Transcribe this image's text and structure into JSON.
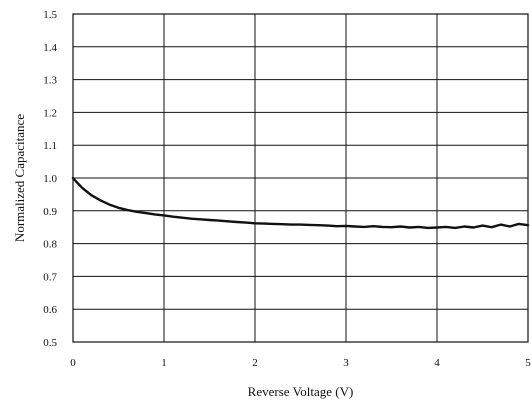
{
  "chart_data": {
    "type": "line",
    "title": "",
    "xlabel": "Reverse Voltage (V)",
    "ylabel": "Normalized Capacitance",
    "xlim": [
      0,
      5
    ],
    "ylim": [
      0.5,
      1.5
    ],
    "x_ticks": [
      "0",
      "1",
      "2",
      "3",
      "4",
      "5"
    ],
    "y_ticks": [
      "0.5",
      "0.6",
      "0.7",
      "0.8",
      "0.9",
      "1.0",
      "1.1",
      "1.2",
      "1.3",
      "1.4",
      "1.5"
    ],
    "grid": true,
    "legend": "none",
    "series": [
      {
        "x": [
          0,
          0.05,
          0.1,
          0.2,
          0.3,
          0.4,
          0.5,
          0.6,
          0.7,
          0.8,
          0.9,
          1.0,
          1.1,
          1.2,
          1.3,
          1.4,
          1.5,
          1.6,
          1.7,
          1.8,
          1.9,
          2.0,
          2.1,
          2.2,
          2.3,
          2.4,
          2.5,
          2.6,
          2.7,
          2.8,
          2.9,
          3.0,
          3.1,
          3.2,
          3.3,
          3.4,
          3.5,
          3.6,
          3.7,
          3.8,
          3.9,
          4.0,
          4.1,
          4.2,
          4.3,
          4.4,
          4.5,
          4.6,
          4.7,
          4.8,
          4.9,
          5.0
        ],
        "values": [
          1.0,
          0.985,
          0.97,
          0.948,
          0.932,
          0.919,
          0.909,
          0.902,
          0.897,
          0.893,
          0.889,
          0.886,
          0.882,
          0.879,
          0.876,
          0.874,
          0.872,
          0.87,
          0.868,
          0.866,
          0.864,
          0.862,
          0.861,
          0.86,
          0.859,
          0.858,
          0.858,
          0.857,
          0.856,
          0.855,
          0.853,
          0.854,
          0.852,
          0.851,
          0.853,
          0.851,
          0.85,
          0.852,
          0.849,
          0.851,
          0.848,
          0.849,
          0.851,
          0.848,
          0.852,
          0.849,
          0.855,
          0.85,
          0.858,
          0.852,
          0.86,
          0.856
        ]
      }
    ],
    "colors": {
      "line": "#111111",
      "grid": "#111111",
      "text": "#111111",
      "background": "#ffffff"
    }
  }
}
